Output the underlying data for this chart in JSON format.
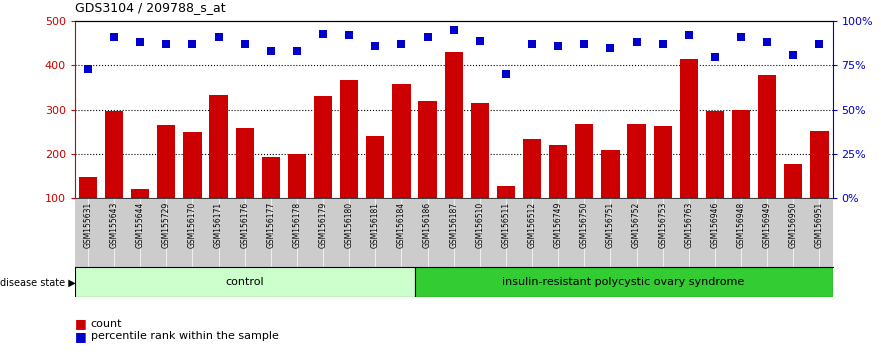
{
  "title": "GDS3104 / 209788_s_at",
  "samples": [
    "GSM155631",
    "GSM155643",
    "GSM155644",
    "GSM155729",
    "GSM156170",
    "GSM156171",
    "GSM156176",
    "GSM156177",
    "GSM156178",
    "GSM156179",
    "GSM156180",
    "GSM156181",
    "GSM156184",
    "GSM156186",
    "GSM156187",
    "GSM156510",
    "GSM156511",
    "GSM156512",
    "GSM156749",
    "GSM156750",
    "GSM156751",
    "GSM156752",
    "GSM156753",
    "GSM156763",
    "GSM156946",
    "GSM156948",
    "GSM156949",
    "GSM156950",
    "GSM156951"
  ],
  "counts": [
    148,
    298,
    122,
    265,
    250,
    333,
    258,
    194,
    200,
    330,
    368,
    240,
    358,
    320,
    430,
    315,
    128,
    235,
    220,
    267,
    210,
    268,
    263,
    415,
    298,
    300,
    378,
    178,
    252
  ],
  "percentile_ranks": [
    73,
    91,
    88,
    87,
    87,
    91,
    87,
    83,
    83,
    93,
    92,
    86,
    87,
    91,
    95,
    89,
    70,
    87,
    86,
    87,
    85,
    88,
    87,
    92,
    80,
    91,
    88,
    81,
    87
  ],
  "control_count": 13,
  "disease_label_control": "control",
  "disease_label_disease": "insulin-resistant polycystic ovary syndrome",
  "disease_state_label": "disease state",
  "bar_color": "#CC0000",
  "dot_color": "#0000CC",
  "control_bg": "#CCFFCC",
  "disease_bg": "#33CC33",
  "tick_bg": "#CCCCCC",
  "ylim_left": [
    100,
    500
  ],
  "ylim_right": [
    0,
    100
  ],
  "yticks_left": [
    100,
    200,
    300,
    400,
    500
  ],
  "yticks_right": [
    0,
    25,
    50,
    75,
    100
  ],
  "ytick_labels_right": [
    "0%",
    "25%",
    "50%",
    "75%",
    "100%"
  ],
  "legend_count_label": "count",
  "legend_pct_label": "percentile rank within the sample",
  "background_color": "#FFFFFF"
}
